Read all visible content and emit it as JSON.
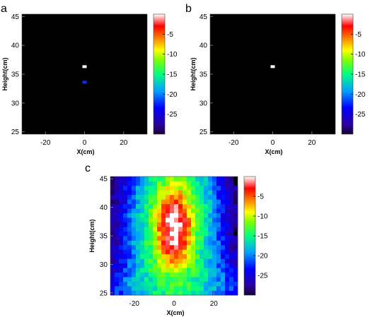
{
  "chart_data": [
    {
      "panel": "a",
      "type": "heatmap",
      "xlabel": "X(cm)",
      "ylabel": "Height(cm)",
      "xlim": [
        -32,
        32
      ],
      "ylim": [
        24.6,
        45.4
      ],
      "xticks": [
        -20,
        0,
        20
      ],
      "yticks": [
        25,
        30,
        35,
        40,
        45
      ],
      "background_db": -30,
      "colorbar": {
        "min": -30,
        "max": 0,
        "ticks": [
          -5,
          -10,
          -15,
          -20,
          -25
        ]
      },
      "points": [
        {
          "x": 0,
          "y": 36.3,
          "value": 0
        },
        {
          "x": 0,
          "y": 33.6,
          "value": -22
        }
      ]
    },
    {
      "panel": "b",
      "type": "heatmap",
      "xlabel": "X(cm)",
      "ylabel": "Height(cm)",
      "xlim": [
        -32,
        32
      ],
      "ylim": [
        24.6,
        45.4
      ],
      "xticks": [
        -20,
        0,
        20
      ],
      "yticks": [
        25,
        30,
        35,
        40,
        45
      ],
      "background_db": -30,
      "colorbar": {
        "min": -30,
        "max": 0,
        "ticks": [
          -5,
          -10,
          -15,
          -20,
          -25
        ]
      },
      "points": [
        {
          "x": 0,
          "y": 36.3,
          "value": 0
        }
      ]
    },
    {
      "panel": "c",
      "type": "heatmap",
      "xlabel": "X(cm)",
      "ylabel": "Height(cm)",
      "xlim": [
        -32,
        32
      ],
      "ylim": [
        24.6,
        45.4
      ],
      "xticks": [
        -20,
        0,
        20
      ],
      "yticks": [
        25,
        30,
        35,
        40,
        45
      ],
      "background_db": -30,
      "colorbar": {
        "min": -30,
        "max": 0,
        "ticks": [
          -5,
          -10,
          -15,
          -20,
          -25
        ]
      },
      "blobs": [
        {
          "x": 0,
          "y": 36.5,
          "sx": 4.0,
          "sy": 3.0,
          "peak": 0
        },
        {
          "x": 0,
          "y": 37.0,
          "sx": 10.0,
          "sy": 8.0,
          "peak": -11
        },
        {
          "x": 0,
          "y": 30.0,
          "sx": 14.0,
          "sy": 2.5,
          "peak": -22
        },
        {
          "x": -8,
          "y": 42.0,
          "sx": 2.0,
          "sy": 3.0,
          "peak": -24
        },
        {
          "x": 8,
          "y": 42.0,
          "sx": 2.0,
          "sy": 3.0,
          "peak": -24
        },
        {
          "x": -18,
          "y": 27.0,
          "sx": 8.0,
          "sy": 2.0,
          "peak": -23
        },
        {
          "x": 18,
          "y": 27.0,
          "sx": 8.0,
          "sy": 2.0,
          "peak": -23
        },
        {
          "x": 0,
          "y": 25.5,
          "sx": 30.0,
          "sy": 1.5,
          "peak": -23
        }
      ]
    }
  ]
}
